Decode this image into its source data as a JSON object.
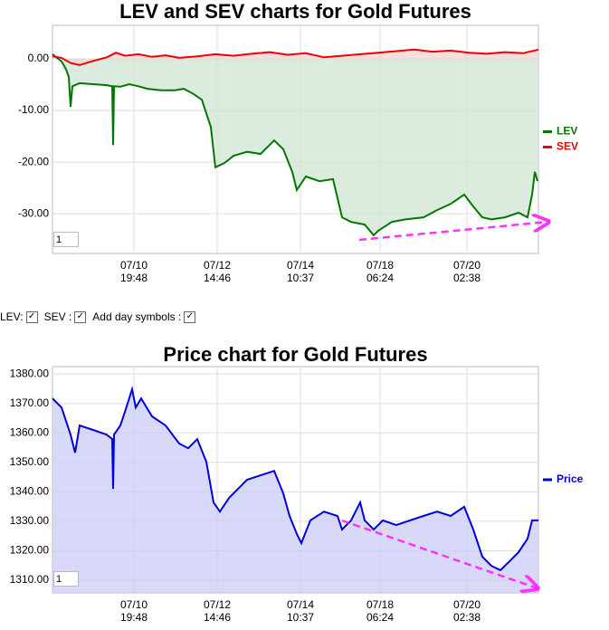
{
  "chart_data": [
    {
      "type": "line",
      "title": "LEV and SEV charts for Gold Futures",
      "fill_area": true,
      "grid": true,
      "legend": "right",
      "input_value": "1",
      "xlim": [
        0,
        537
      ],
      "ylim": [
        -37.7,
        6.5
      ],
      "xticks": [
        {
          "value": 90,
          "label": "07/10\n19:48"
        },
        {
          "value": 182,
          "label": "07/12\n14:46"
        },
        {
          "value": 274,
          "label": "07/14\n10:37"
        },
        {
          "value": 362,
          "label": "07/18\n06:24"
        },
        {
          "value": 458,
          "label": "07/20\n02:38"
        }
      ],
      "yticks": [
        {
          "value": 0,
          "label": "0.00"
        },
        {
          "value": -10,
          "label": "-10.00"
        },
        {
          "value": -20,
          "label": "-20.00"
        },
        {
          "value": -30,
          "label": "-30.00"
        }
      ],
      "series": [
        {
          "name": "LEV",
          "color": "#007700",
          "fill": "#cfe5d4",
          "x": [
            0,
            10,
            15,
            18,
            20,
            22,
            30,
            45,
            60,
            66,
            67,
            68,
            75,
            85,
            95,
            105,
            120,
            135,
            145,
            155,
            165,
            175,
            180,
            190,
            200,
            215,
            230,
            245,
            255,
            265,
            270,
            280,
            295,
            310,
            320,
            330,
            345,
            355,
            360,
            375,
            390,
            410,
            425,
            440,
            455,
            465,
            475,
            485,
            500,
            515,
            525,
            530,
            533,
            536
          ],
          "values": [
            0.9,
            -0.5,
            -2,
            -3.5,
            -9.3,
            -5.3,
            -4.7,
            -4.9,
            -5.1,
            -5.3,
            -16.7,
            -5.3,
            -5.4,
            -4.9,
            -5.3,
            -5.8,
            -6.1,
            -6.1,
            -5.8,
            -6.7,
            -7.9,
            -13.2,
            -21,
            -20.2,
            -18.8,
            -18,
            -18.4,
            -15.8,
            -17.5,
            -21.9,
            -25.4,
            -22.8,
            -23.7,
            -23.3,
            -30.7,
            -31.6,
            -32.1,
            -34.2,
            -33.3,
            -31.6,
            -31.1,
            -30.7,
            -29.3,
            -28.1,
            -26.3,
            -28.6,
            -30.7,
            -31.1,
            -30.7,
            -29.8,
            -30.7,
            -26.3,
            -21.9,
            -23.7
          ]
        },
        {
          "name": "SEV",
          "color": "#ee0000",
          "fill": "#f3d3d3",
          "x": [
            0,
            10,
            20,
            30,
            45,
            60,
            70,
            80,
            95,
            110,
            125,
            140,
            160,
            180,
            200,
            220,
            240,
            260,
            280,
            300,
            320,
            340,
            360,
            380,
            400,
            420,
            440,
            460,
            480,
            500,
            520,
            537
          ],
          "values": [
            0.5,
            0.2,
            -0.8,
            -1.2,
            -0.4,
            0.3,
            1.2,
            0.6,
            0.9,
            0.4,
            0.7,
            0.2,
            0.5,
            0.9,
            0.6,
            1.0,
            1.3,
            0.8,
            1.1,
            0.3,
            0.6,
            0.9,
            1.2,
            1.5,
            1.8,
            1.4,
            1.6,
            1.2,
            1.0,
            1.3,
            1.1,
            1.8
          ]
        }
      ]
    },
    {
      "type": "line",
      "title": "Price chart for Gold Futures",
      "fill_area": true,
      "grid": true,
      "legend": "right",
      "input_value": "1",
      "xlim": [
        0,
        537
      ],
      "ylim": [
        1305.7,
        1382.5
      ],
      "xticks": [
        {
          "value": 90,
          "label": "07/10\n19:48"
        },
        {
          "value": 182,
          "label": "07/12\n14:46"
        },
        {
          "value": 274,
          "label": "07/14\n10:37"
        },
        {
          "value": 362,
          "label": "07/18\n06:24"
        },
        {
          "value": 458,
          "label": "07/20\n02:38"
        }
      ],
      "yticks": [
        {
          "value": 1310,
          "label": "1310.00"
        },
        {
          "value": 1320,
          "label": "1320.00"
        },
        {
          "value": 1330,
          "label": "1330.00"
        },
        {
          "value": 1340,
          "label": "1340.00"
        },
        {
          "value": 1350,
          "label": "1350.00"
        },
        {
          "value": 1360,
          "label": "1360.00"
        },
        {
          "value": 1370,
          "label": "1370.00"
        },
        {
          "value": 1380,
          "label": "1380.00"
        }
      ],
      "series": [
        {
          "name": "Price",
          "color": "#0000dd",
          "fill": "#cbcbf5",
          "x": [
            0,
            10,
            20,
            25,
            30,
            45,
            60,
            66,
            67,
            68,
            75,
            80,
            88,
            92,
            98,
            110,
            125,
            140,
            150,
            160,
            170,
            178,
            185,
            195,
            205,
            215,
            230,
            245,
            255,
            262,
            270,
            275,
            285,
            300,
            315,
            320,
            330,
            340,
            345,
            355,
            365,
            380,
            395,
            410,
            425,
            440,
            455,
            465,
            475,
            485,
            495,
            505,
            515,
            525,
            530,
            537
          ],
          "values": [
            1371.7,
            1368.6,
            1359.4,
            1353.3,
            1362.5,
            1361,
            1359.4,
            1357.9,
            1341,
            1359.4,
            1362.5,
            1367.1,
            1374.8,
            1368.6,
            1371.7,
            1365.6,
            1362.5,
            1356.4,
            1354.8,
            1357.9,
            1350.2,
            1336.4,
            1333.3,
            1337.9,
            1341,
            1344.1,
            1345.6,
            1347.1,
            1339.5,
            1331.8,
            1325.7,
            1322.6,
            1330.3,
            1333.3,
            1331.8,
            1327.2,
            1330.3,
            1336.4,
            1330.3,
            1327.2,
            1330.3,
            1328.7,
            1330.3,
            1331.8,
            1333.3,
            1331.8,
            1334.9,
            1327.2,
            1318,
            1314.9,
            1313.4,
            1316.4,
            1319.5,
            1324.1,
            1330.3,
            1330.3
          ]
        }
      ]
    }
  ],
  "controls": {
    "lev": "LEV:",
    "sev": "SEV :",
    "day_symbols": "Add day symbols :"
  }
}
